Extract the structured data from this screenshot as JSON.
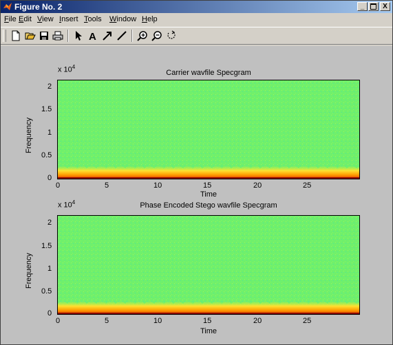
{
  "window": {
    "title": "Figure No. 2",
    "min_label": "_",
    "max_label": "□",
    "close_label": "X"
  },
  "menu": {
    "items": [
      {
        "accel": "F",
        "rest": "ile"
      },
      {
        "accel": "E",
        "rest": "dit"
      },
      {
        "accel": "V",
        "rest": "iew"
      },
      {
        "accel": "I",
        "rest": "nsert"
      },
      {
        "accel": "T",
        "rest": "ools"
      },
      {
        "accel": "W",
        "rest": "indow"
      },
      {
        "accel": "H",
        "rest": "elp"
      }
    ]
  },
  "toolbar": {
    "icons": [
      "new-file-icon",
      "open-file-icon",
      "save-icon",
      "print-icon",
      "select-arrow-icon",
      "insert-text-icon",
      "insert-arrow-icon",
      "insert-line-icon",
      "zoom-in-icon",
      "zoom-out-icon",
      "rotate-icon"
    ]
  },
  "plots": [
    {
      "title": "Carrier wavfile Specgram",
      "ylabel": "Frequency",
      "xlabel": "Time",
      "exponent_base": "x 10",
      "exponent_power": "4",
      "yticks": [
        "2",
        "1.5",
        "1",
        "0.5",
        "0"
      ],
      "xticks": [
        "0",
        "5",
        "10",
        "15",
        "20",
        "25"
      ]
    },
    {
      "title": "Phase Encoded Stego wavfile Specgram",
      "ylabel": "Frequency",
      "xlabel": "Time",
      "exponent_base": "x 10",
      "exponent_power": "4",
      "yticks": [
        "2",
        "1.5",
        "1",
        "0.5",
        "0"
      ],
      "xticks": [
        "0",
        "5",
        "10",
        "15",
        "20",
        "25"
      ]
    }
  ],
  "colors": {
    "spectrogram_bg": "#6ff06c",
    "low_band": "#e02000",
    "mid_band": "#ffd400"
  }
}
